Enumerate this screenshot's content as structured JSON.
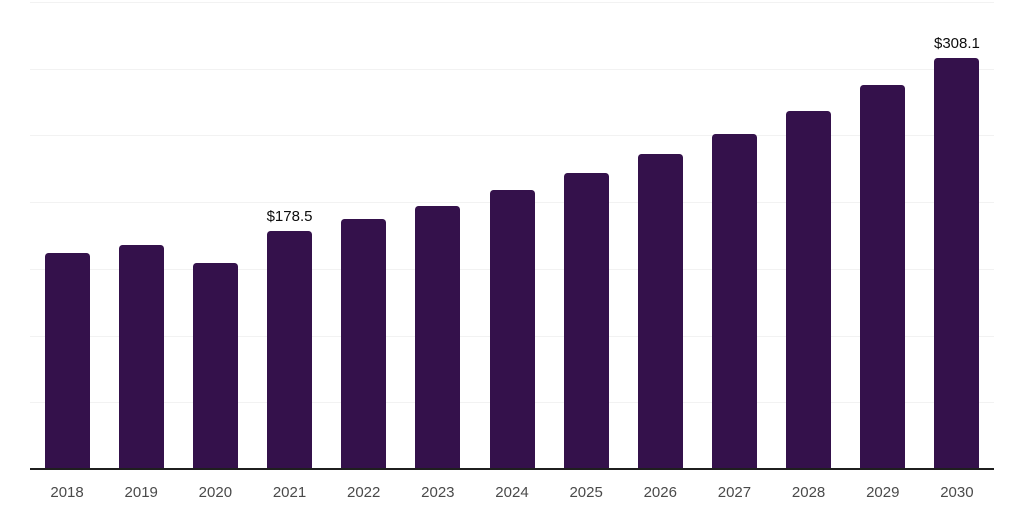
{
  "chart_data": {
    "type": "bar",
    "title": "",
    "xlabel": "",
    "ylabel": "",
    "categories": [
      "2018",
      "2019",
      "2020",
      "2021",
      "2022",
      "2023",
      "2024",
      "2025",
      "2026",
      "2027",
      "2028",
      "2029",
      "2030"
    ],
    "values": [
      161.7,
      167.9,
      154.2,
      178.5,
      187.1,
      197.1,
      209.1,
      222.1,
      235.9,
      251.1,
      268.5,
      287.8,
      308.1
    ],
    "data_labels": [
      "",
      "",
      "",
      "$178.5",
      "",
      "",
      "",
      "",
      "",
      "",
      "",
      "",
      "$308.1"
    ],
    "ylim": [
      0,
      350
    ],
    "gridline_step": 50,
    "grid": true,
    "legend": "none",
    "colors": {
      "bar": "#34114b",
      "axis": "#1f1f1f",
      "grid": "#f2f2f2",
      "tick_text": "#4a4a4a",
      "value_text": "#0d0d0d"
    }
  }
}
